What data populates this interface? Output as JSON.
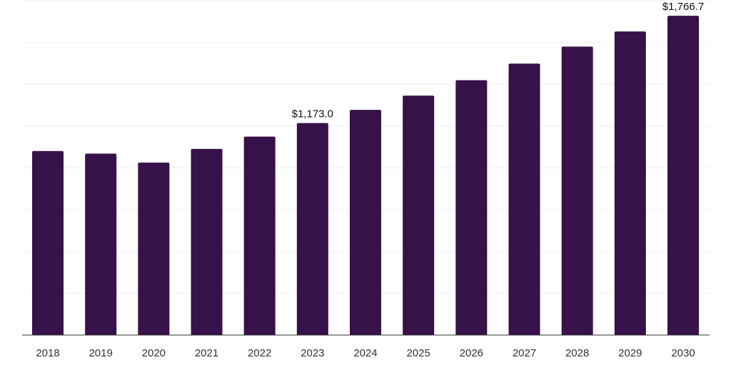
{
  "chart_data": {
    "type": "bar",
    "title": "",
    "xlabel": "",
    "ylabel": "",
    "ylim": [
      0,
      1850
    ],
    "grid": true,
    "categories": [
      "2018",
      "2019",
      "2020",
      "2021",
      "2022",
      "2023",
      "2024",
      "2025",
      "2026",
      "2027",
      "2028",
      "2029",
      "2030"
    ],
    "values": [
      1018,
      1004,
      954,
      1030,
      1098,
      1173.0,
      1246,
      1325,
      1410,
      1502,
      1596,
      1680,
      1766.7
    ],
    "data_labels": [
      {
        "index": 5,
        "text": "$1,173.0"
      },
      {
        "index": 12,
        "text": "$1,766.7"
      }
    ],
    "colors": {
      "bar": "#371149",
      "grid": "#efefef",
      "axis": "#333333"
    }
  }
}
